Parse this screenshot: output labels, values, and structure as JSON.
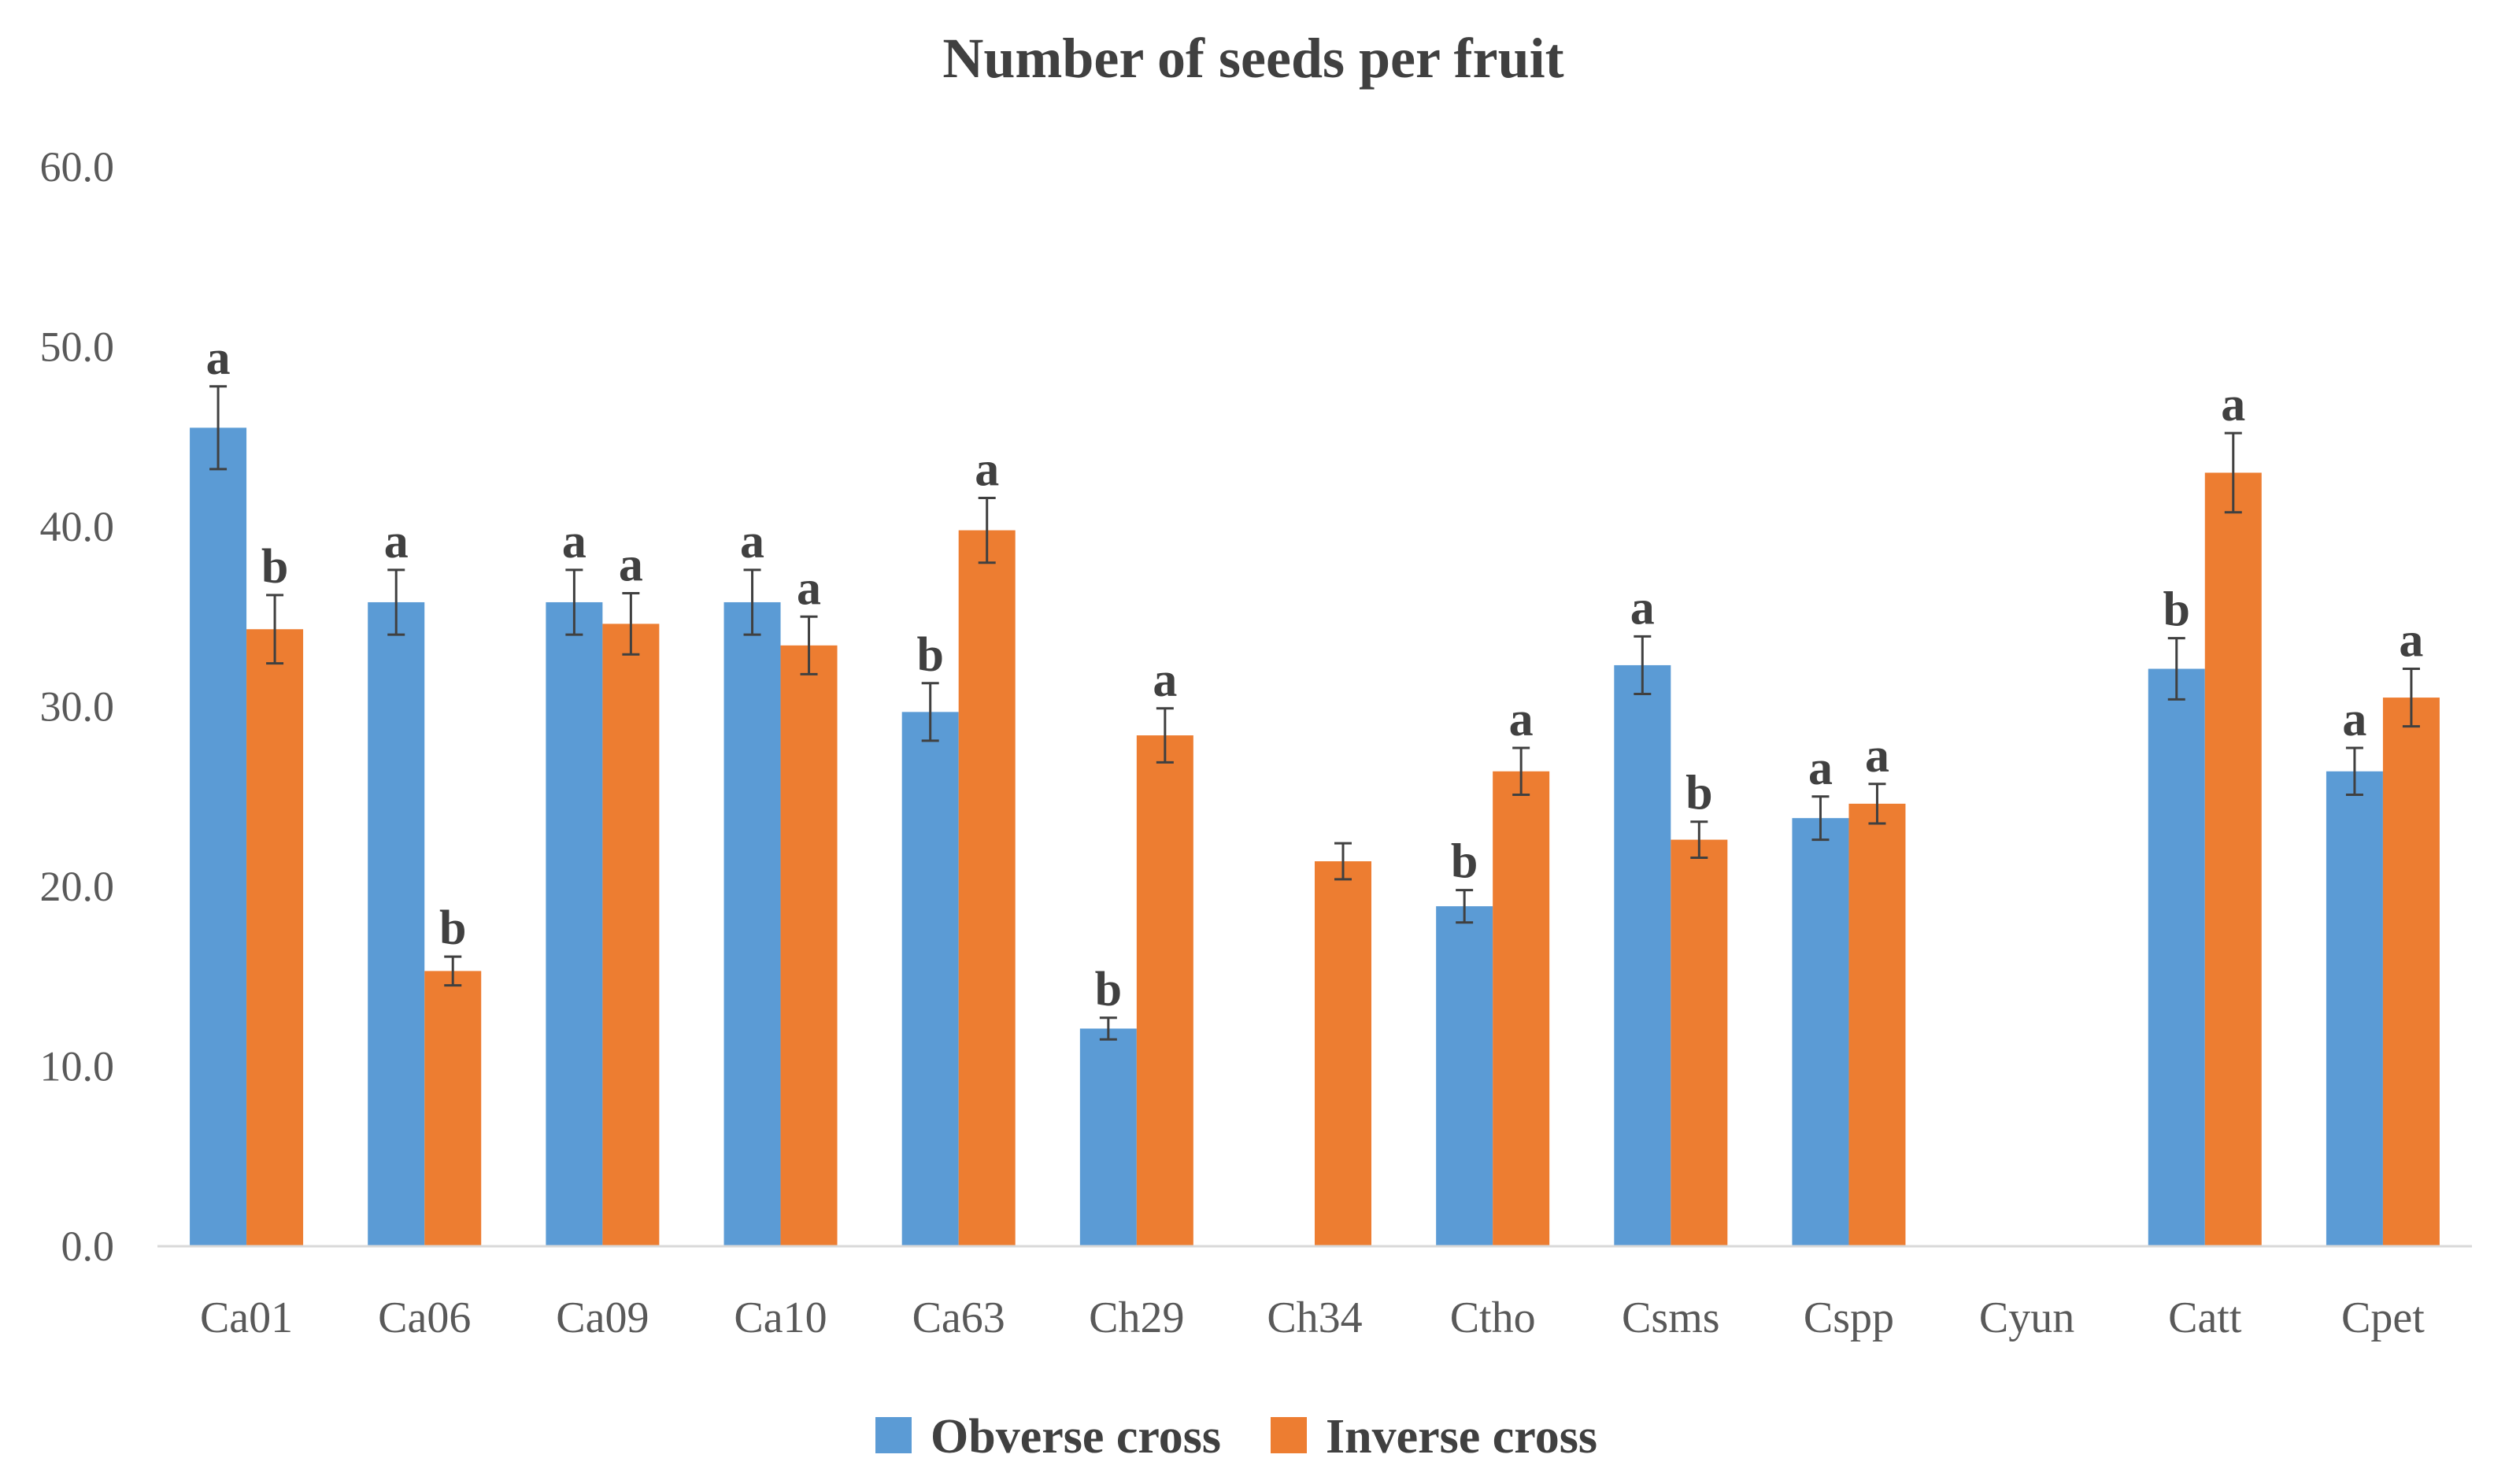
{
  "chart_data": {
    "type": "bar",
    "title": "Number of seeds per fruit",
    "xlabel": "",
    "ylabel": "",
    "ylim": [
      0,
      60
    ],
    "yticks": [
      0,
      10,
      20,
      30,
      40,
      50,
      60
    ],
    "ytick_labels": [
      "0.0",
      "10.0",
      "20.0",
      "30.0",
      "40.0",
      "50.0",
      "60.0"
    ],
    "categories": [
      "Ca01",
      "Ca06",
      "Ca09",
      "Ca10",
      "Ca63",
      "Ch29",
      "Ch34",
      "Ctho",
      "Csms",
      "Cspp",
      "Cyun",
      "Catt",
      "Cpet"
    ],
    "series": [
      {
        "name": "Obverse cross",
        "color": "#5B9BD5",
        "values": [
          45.5,
          35.8,
          35.8,
          35.8,
          29.7,
          12.1,
          null,
          18.9,
          32.3,
          23.8,
          null,
          32.1,
          26.4
        ],
        "errors": [
          2.3,
          1.8,
          1.8,
          1.8,
          1.6,
          0.6,
          null,
          0.9,
          1.6,
          1.2,
          null,
          1.7,
          1.3
        ],
        "letters": [
          "a",
          "a",
          "a",
          "a",
          "b",
          "b",
          "",
          "b",
          "a",
          "a",
          "",
          "b",
          "a"
        ]
      },
      {
        "name": "Inverse cross",
        "color": "#ED7D31",
        "values": [
          34.3,
          15.3,
          34.6,
          33.4,
          39.8,
          28.4,
          21.4,
          26.4,
          22.6,
          24.6,
          null,
          43.0,
          30.5
        ],
        "errors": [
          1.9,
          0.8,
          1.7,
          1.6,
          1.8,
          1.5,
          1.0,
          1.3,
          1.0,
          1.1,
          null,
          2.2,
          1.6
        ],
        "letters": [
          "b",
          "b",
          "a",
          "a",
          "a",
          "a",
          "",
          "a",
          "b",
          "a",
          "",
          "a",
          "a"
        ]
      }
    ],
    "legend_position": "bottom-center",
    "grid": false
  }
}
